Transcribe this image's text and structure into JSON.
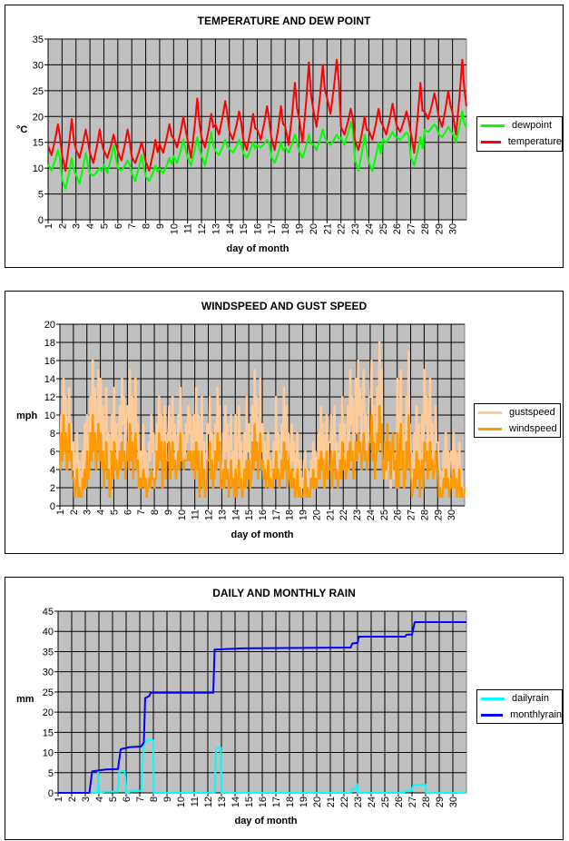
{
  "chart_data": [
    {
      "type": "line",
      "title": "TEMPERATURE AND DEW POINT",
      "xlabel": "day of month",
      "ylabel": "°C",
      "ylim": [
        0,
        35
      ],
      "yticks": [
        0,
        5,
        10,
        15,
        20,
        25,
        30,
        35
      ],
      "xlim": [
        1,
        31
      ],
      "categories": [
        "1",
        "2",
        "3",
        "4",
        "5",
        "6",
        "7",
        "8",
        "9",
        "10",
        "11",
        "12",
        "13",
        "14",
        "15",
        "16",
        "17",
        "18",
        "19",
        "20",
        "21",
        "22",
        "23",
        "24",
        "25",
        "26",
        "27",
        "28",
        "29",
        "30"
      ],
      "grid": true,
      "legend_position": "right",
      "series": [
        {
          "name": "dewpoint",
          "color": "#00ff00",
          "daily_min": [
            9.5,
            6,
            7,
            8.5,
            9,
            9.5,
            7.5,
            7.5,
            9,
            11,
            10.5,
            10.5,
            12.5,
            13,
            12,
            14,
            11,
            13,
            12,
            13.5,
            14.5,
            14.5,
            9.5,
            9.5,
            15,
            15.5,
            10.5,
            17,
            16,
            15
          ],
          "daily_max": [
            13.5,
            12,
            13,
            10,
            14.5,
            11.5,
            12.5,
            10.5,
            12,
            15.5,
            16,
            17,
            15.5,
            15.5,
            15,
            15.5,
            15,
            16.5,
            16.5,
            17.5,
            16.5,
            19,
            16.5,
            15,
            17,
            17,
            16,
            18.5,
            18,
            21
          ],
          "end_value": 18
        },
        {
          "name": "temperature",
          "color": "#ff0000",
          "daily_min": [
            12.5,
            9.5,
            12,
            11,
            12,
            11.5,
            11,
            9.5,
            13,
            14,
            12,
            14,
            16.5,
            15.5,
            13.5,
            15.5,
            13.5,
            14.5,
            15,
            18,
            20.5,
            16.5,
            13.5,
            15.5,
            16.5,
            17,
            13,
            19.5,
            18,
            16.5
          ],
          "daily_max": [
            18.5,
            19.5,
            17.5,
            17.5,
            16.5,
            17.5,
            15,
            15.5,
            18.5,
            20,
            23.5,
            20.5,
            23,
            21,
            20.5,
            22,
            22,
            26.5,
            30.5,
            30,
            31,
            21.5,
            20,
            21.5,
            22.5,
            21,
            26.5,
            24.5,
            25,
            31
          ],
          "end_value": 22
        }
      ]
    },
    {
      "type": "line",
      "title": "WINDSPEED AND GUST SPEED",
      "xlabel": "day of month",
      "ylabel": "mph",
      "ylim": [
        0,
        20
      ],
      "yticks": [
        0,
        2,
        4,
        6,
        8,
        10,
        12,
        14,
        16,
        18,
        20
      ],
      "xlim": [
        1,
        31
      ],
      "categories": [
        "1",
        "2",
        "3",
        "4",
        "5",
        "6",
        "7",
        "8",
        "9",
        "10",
        "11",
        "12",
        "13",
        "14",
        "15",
        "16",
        "17",
        "18",
        "19",
        "20",
        "21",
        "22",
        "23",
        "24",
        "25",
        "26",
        "27",
        "28",
        "29",
        "30"
      ],
      "grid": true,
      "legend_position": "right",
      "series": [
        {
          "name": "gustspeed",
          "color": "#ffcc99",
          "daily_max": [
            14,
            9,
            16,
            14,
            14,
            15,
            10,
            12,
            13,
            11,
            13,
            13,
            11,
            12,
            15,
            9,
            13,
            9,
            7,
            11,
            12,
            15,
            16,
            18,
            6,
            17,
            11,
            15,
            8,
            8
          ],
          "daily_min": [
            2,
            0,
            2,
            1,
            3,
            2,
            1,
            1,
            3,
            4,
            0,
            1,
            0,
            0,
            1,
            1,
            1,
            0,
            1,
            1,
            1,
            2,
            3,
            2,
            1,
            0,
            0,
            2,
            0,
            0
          ]
        },
        {
          "name": "windspeed",
          "color": "#ff9900",
          "daily_max": [
            10,
            4,
            10,
            8,
            7,
            9,
            4,
            8,
            8,
            6,
            7,
            8,
            5,
            5,
            9,
            5,
            7,
            4,
            4,
            6,
            7,
            7,
            8,
            11,
            9,
            10,
            6,
            7,
            4,
            4
          ],
          "daily_min": [
            2,
            0,
            2,
            0,
            2,
            1,
            1,
            1,
            2,
            4,
            0,
            1,
            0,
            0,
            1,
            1,
            1,
            0,
            0,
            1,
            1,
            2,
            3,
            2,
            1,
            0,
            0,
            2,
            0,
            0
          ]
        }
      ]
    },
    {
      "type": "line",
      "title": "DAILY AND MONTHLY RAIN",
      "xlabel": "day of month",
      "ylabel": "mm",
      "ylim": [
        0,
        45
      ],
      "yticks": [
        0,
        5,
        10,
        15,
        20,
        25,
        30,
        35,
        40,
        45
      ],
      "xlim": [
        1,
        31
      ],
      "categories": [
        "1",
        "2",
        "3",
        "4",
        "5",
        "6",
        "7",
        "8",
        "9",
        "10",
        "11",
        "12",
        "13",
        "14",
        "15",
        "16",
        "17",
        "18",
        "19",
        "20",
        "21",
        "22",
        "23",
        "24",
        "25",
        "26",
        "27",
        "28",
        "29",
        "30"
      ],
      "grid": true,
      "legend_position": "right",
      "series": [
        {
          "name": "dailyrain",
          "color": "#00ffff",
          "points": [
            [
              1,
              0
            ],
            [
              3.9,
              0
            ],
            [
              3.95,
              5.3
            ],
            [
              4.0,
              0
            ],
            [
              4.5,
              0.3
            ],
            [
              5.4,
              0.3
            ],
            [
              5.5,
              5.2
            ],
            [
              5.9,
              5.5
            ],
            [
              6.0,
              0
            ],
            [
              6.5,
              0.5
            ],
            [
              7.1,
              0.5
            ],
            [
              7.3,
              12.5
            ],
            [
              7.7,
              13.2
            ],
            [
              8.0,
              13
            ],
            [
              8.02,
              0
            ],
            [
              12.5,
              0
            ],
            [
              12.6,
              11
            ],
            [
              12.95,
              11.2
            ],
            [
              13,
              0
            ],
            [
              22.5,
              0
            ],
            [
              22.6,
              1
            ],
            [
              22.9,
              1
            ],
            [
              22.95,
              2.2
            ],
            [
              23,
              0
            ],
            [
              26.4,
              0
            ],
            [
              26.5,
              0.5
            ],
            [
              27,
              0.5
            ],
            [
              27.1,
              2
            ],
            [
              28,
              2
            ],
            [
              28.02,
              0
            ],
            [
              31,
              0
            ]
          ]
        },
        {
          "name": "monthlyrain",
          "color": "#0000ff",
          "points": [
            [
              1,
              0
            ],
            [
              3.3,
              0
            ],
            [
              3.5,
              5.3
            ],
            [
              4.5,
              5.8
            ],
            [
              5.4,
              5.9
            ],
            [
              5.6,
              10.8
            ],
            [
              6.2,
              11.3
            ],
            [
              7.1,
              11.5
            ],
            [
              7.3,
              12.5
            ],
            [
              7.4,
              23.5
            ],
            [
              7.7,
              24
            ],
            [
              7.8,
              24.8
            ],
            [
              12.4,
              24.8
            ],
            [
              12.5,
              35.5
            ],
            [
              14.5,
              35.8
            ],
            [
              22.5,
              36
            ],
            [
              22.6,
              37
            ],
            [
              23,
              37.2
            ],
            [
              23.1,
              38.7
            ],
            [
              26.5,
              38.7
            ],
            [
              26.6,
              39.2
            ],
            [
              27,
              39.2
            ],
            [
              27.2,
              42.3
            ],
            [
              31,
              42.3
            ]
          ]
        }
      ]
    }
  ]
}
